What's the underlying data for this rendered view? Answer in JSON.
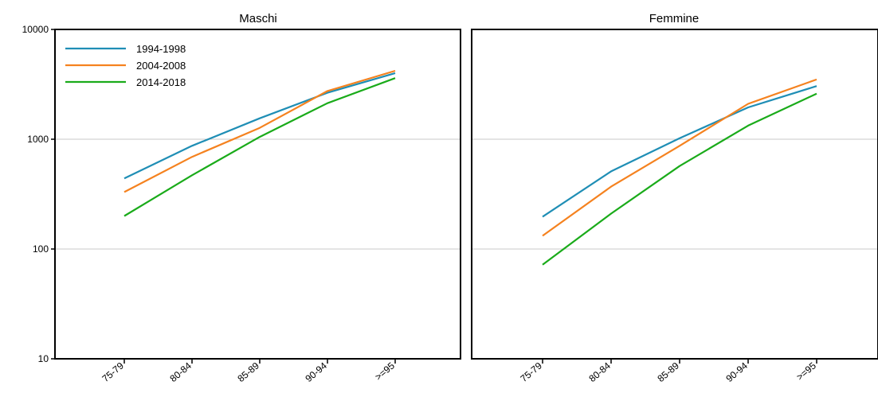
{
  "chart_data": [
    {
      "type": "line",
      "title": "Maschi",
      "categories": [
        "75-79",
        "80-84",
        "85-89",
        "90-94",
        ">=95"
      ],
      "y_scale": "log",
      "ylim": [
        10,
        10000
      ],
      "y_ticks": [
        10,
        100,
        1000,
        10000
      ],
      "y_tick_labels": [
        "10",
        "100",
        "1000",
        "10000"
      ],
      "grid": "horizontal",
      "legend_position": "top-left",
      "series": [
        {
          "name": "1994-1998",
          "color": "#1f8eb5",
          "values": [
            440,
            870,
            1550,
            2650,
            4000
          ]
        },
        {
          "name": "2004-2008",
          "color": "#f5821f",
          "values": [
            330,
            690,
            1270,
            2750,
            4200
          ]
        },
        {
          "name": "2014-2018",
          "color": "#1aab1a",
          "values": [
            200,
            470,
            1050,
            2130,
            3600
          ]
        }
      ]
    },
    {
      "type": "line",
      "title": "Femmine",
      "categories": [
        "75-79",
        "80-84",
        "85-89",
        "90-94",
        ">=95"
      ],
      "y_scale": "log",
      "ylim": [
        10,
        10000
      ],
      "y_ticks": [
        10,
        100,
        1000,
        10000
      ],
      "grid": "horizontal",
      "series": [
        {
          "name": "1994-1998",
          "color": "#1f8eb5",
          "values": [
            197,
            510,
            1020,
            1950,
            3050
          ]
        },
        {
          "name": "2004-2008",
          "color": "#f5821f",
          "values": [
            132,
            370,
            870,
            2100,
            3500
          ]
        },
        {
          "name": "2014-2018",
          "color": "#1aab1a",
          "values": [
            72,
            210,
            570,
            1330,
            2600
          ]
        }
      ]
    }
  ]
}
